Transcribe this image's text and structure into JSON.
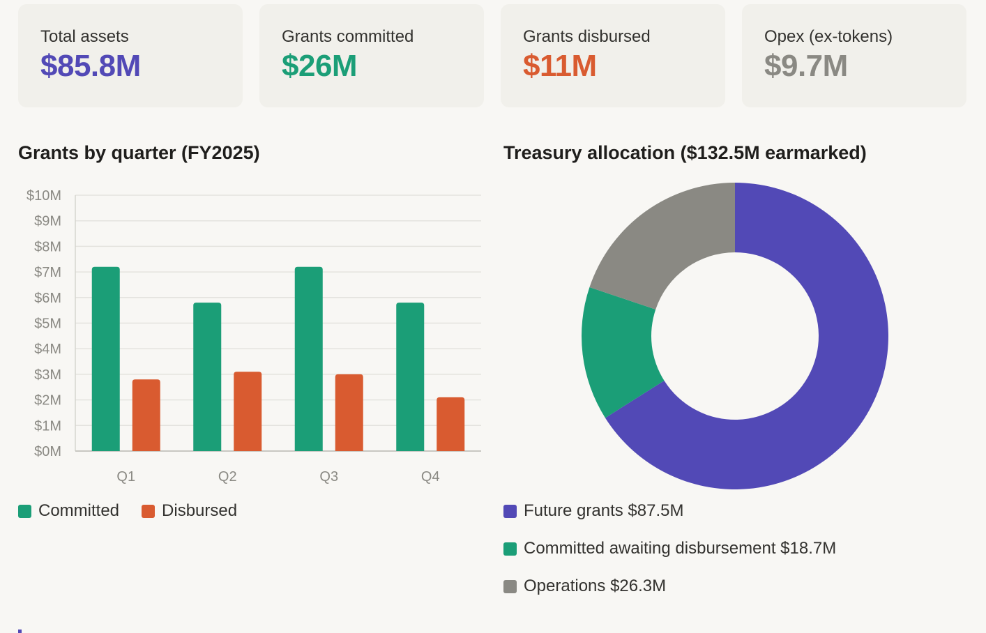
{
  "colors": {
    "committed": "#1b9e77",
    "disbursed": "#d95b30",
    "future": "#5249b6",
    "operations": "#8a8983",
    "muted": "#8a8983"
  },
  "stats": [
    {
      "label": "Total assets",
      "value": "$85.8M",
      "color": "#5249b6"
    },
    {
      "label": "Grants committed",
      "value": "$26M",
      "color": "#1b9e77"
    },
    {
      "label": "Grants disbursed",
      "value": "$11M",
      "color": "#d95b30"
    },
    {
      "label": "Opex (ex-tokens)",
      "value": "$9.7M",
      "color": "#8a8983"
    }
  ],
  "bar_title": "Grants by quarter (FY2025)",
  "donut_title": "Treasury allocation ($132.5M earmarked)",
  "chart_data": [
    {
      "type": "bar",
      "title": "Grants by quarter (FY2025)",
      "categories": [
        "Q1",
        "Q2",
        "Q3",
        "Q4"
      ],
      "series": [
        {
          "name": "Committed",
          "values": [
            7.2,
            5.8,
            7.2,
            5.8
          ],
          "color": "#1b9e77"
        },
        {
          "name": "Disbursed",
          "values": [
            2.8,
            3.1,
            3.0,
            2.1
          ],
          "color": "#d95b30"
        }
      ],
      "y_ticks": [
        "$0M",
        "$1M",
        "$2M",
        "$3M",
        "$4M",
        "$5M",
        "$6M",
        "$7M",
        "$8M",
        "$9M",
        "$10M"
      ],
      "ylim": [
        0,
        10
      ],
      "grid": true,
      "legend": "bottom-left"
    },
    {
      "type": "pie",
      "title": "Treasury allocation ($132.5M earmarked)",
      "donut": true,
      "slices": [
        {
          "name": "Future grants",
          "value": 87.5,
          "label": "$87.5M",
          "color": "#5249b6"
        },
        {
          "name": "Committed awaiting disbursement",
          "value": 18.7,
          "label": "$18.7M",
          "color": "#1b9e77"
        },
        {
          "name": "Operations",
          "value": 26.3,
          "label": "$26.3M",
          "color": "#8a8983"
        }
      ],
      "legend": "bottom"
    }
  ]
}
